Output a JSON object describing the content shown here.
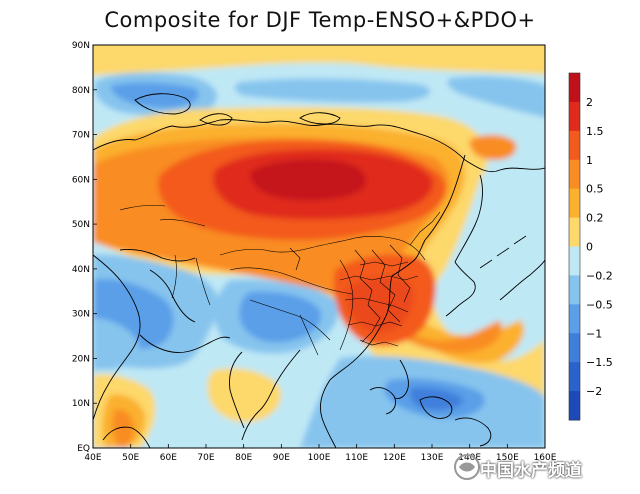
{
  "title": "Composite for DJF Temp-ENSO+&PDO+",
  "x_ticks": [
    "40E",
    "50E",
    "60E",
    "70E",
    "80E",
    "90E",
    "100E",
    "110E",
    "120E",
    "130E",
    "140E",
    "150E",
    "160E"
  ],
  "y_ticks": [
    "EQ",
    "10N",
    "20N",
    "30N",
    "40N",
    "50N",
    "60N",
    "70N",
    "80N",
    "90N"
  ],
  "colorbar": {
    "labels": [
      "2",
      "1.5",
      "1",
      "0.5",
      "0.2",
      "0",
      "−0.2",
      "−0.5",
      "−1",
      "−1.5",
      "−2"
    ],
    "colors": [
      "#c0101a",
      "#e02a1c",
      "#f35a1e",
      "#f98c22",
      "#fbb02e",
      "#fdd86a",
      "#bfe8f5",
      "#86c4ee",
      "#5a9fe8",
      "#3f7fdc",
      "#2a62cc",
      "#1d4ab8"
    ]
  },
  "watermark": {
    "text": "中国水产频道"
  }
}
